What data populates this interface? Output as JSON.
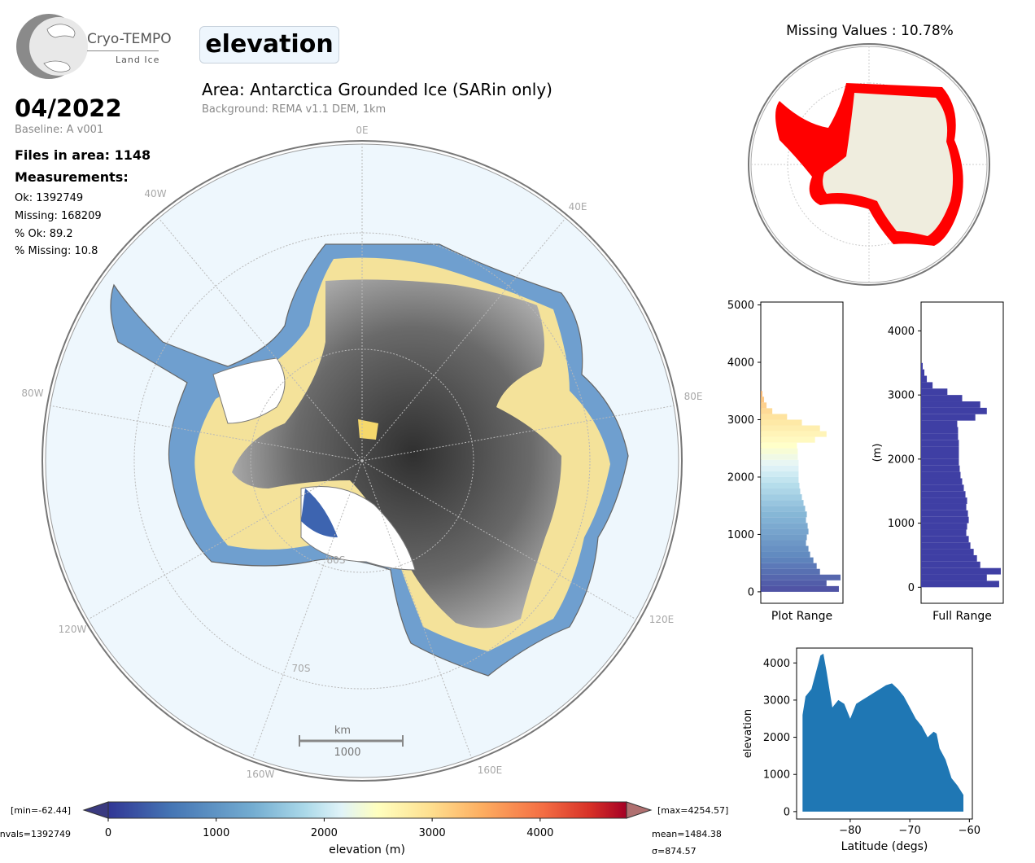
{
  "header": {
    "logo_name": "Cryo-TEMPO",
    "logo_sub": "Land Ice",
    "variable": "elevation",
    "area_title": "Area: Antarctica Grounded Ice (SARin only)",
    "background": "Background: REMA v1.1 DEM, 1km"
  },
  "info": {
    "date": "04/2022",
    "baseline": "Baseline: A v001",
    "files": "Files in area: 1148",
    "measurements_label": "Measurements:",
    "ok": "Ok: 1392749",
    "missing": "Missing: 168209",
    "pct_ok": "% Ok: 89.2",
    "pct_missing": "% Missing: 10.8"
  },
  "map": {
    "lon_labels": [
      "0E",
      "40E",
      "80E",
      "120E",
      "160E",
      "160W",
      "120W",
      "80W",
      "40W"
    ],
    "lat_labels": [
      "80S",
      "70S"
    ],
    "scale_unit": "km",
    "scale_value": "1000"
  },
  "missing_map": {
    "title": "Missing Values : 10.78%"
  },
  "colorbar": {
    "min_text": "[min=-62.44]",
    "max_text": "[max=4254.57]",
    "nvals_text": "nvals=1392749",
    "mean_text": "mean=1484.38",
    "sigma_text": "σ=874.57",
    "label": "elevation (m)",
    "ticks": [
      0,
      1000,
      2000,
      3000,
      4000
    ],
    "range": [
      0,
      4800
    ]
  },
  "colors": {
    "ocean": "#eef7fd",
    "land": "#efedde",
    "missing": "#ff0000",
    "hist_full": "#3f3fa4",
    "scatter": "#1f77b4"
  },
  "chart_data": [
    {
      "type": "bar",
      "orientation": "horizontal",
      "title": "",
      "xlabel": "Plot Range",
      "ylabel": "",
      "ylim": [
        -200,
        5050
      ],
      "yticks": [
        0,
        1000,
        2000,
        3000,
        4000,
        5000
      ],
      "bins": [
        0,
        100,
        200,
        300,
        400,
        500,
        600,
        700,
        800,
        900,
        1000,
        1100,
        1200,
        1300,
        1400,
        1500,
        1600,
        1700,
        1800,
        1900,
        2000,
        2100,
        2200,
        2300,
        2400,
        2500,
        2600,
        2700,
        2800,
        2900,
        3000,
        3100,
        3200,
        3300,
        3400
      ],
      "counts": [
        0.95,
        0.8,
        0.97,
        0.72,
        0.68,
        0.64,
        0.6,
        0.58,
        0.55,
        0.56,
        0.58,
        0.57,
        0.55,
        0.56,
        0.54,
        0.52,
        0.5,
        0.48,
        0.47,
        0.46,
        0.46,
        0.46,
        0.46,
        0.45,
        0.45,
        0.44,
        0.66,
        0.8,
        0.72,
        0.5,
        0.32,
        0.14,
        0.07,
        0.04,
        0.02
      ]
    },
    {
      "type": "bar",
      "orientation": "horizontal",
      "title": "",
      "xlabel": "Full Range",
      "ylabel": "(m)",
      "ylim": [
        -250,
        4450
      ],
      "yticks": [
        0,
        1000,
        2000,
        3000,
        4000
      ],
      "bins": [
        0,
        100,
        200,
        300,
        400,
        500,
        600,
        700,
        800,
        900,
        1000,
        1100,
        1200,
        1300,
        1400,
        1500,
        1600,
        1700,
        1800,
        1900,
        2000,
        2100,
        2200,
        2300,
        2400,
        2500,
        2600,
        2700,
        2800,
        2900,
        3000,
        3100,
        3200,
        3300,
        3400
      ],
      "counts": [
        0.95,
        0.8,
        0.97,
        0.72,
        0.68,
        0.64,
        0.6,
        0.58,
        0.55,
        0.56,
        0.58,
        0.57,
        0.55,
        0.56,
        0.54,
        0.52,
        0.5,
        0.48,
        0.47,
        0.46,
        0.46,
        0.46,
        0.46,
        0.45,
        0.45,
        0.44,
        0.66,
        0.8,
        0.72,
        0.5,
        0.32,
        0.14,
        0.07,
        0.04,
        0.02
      ]
    },
    {
      "type": "scatter",
      "title": "",
      "xlabel": "Latitude (degs)",
      "ylabel": "elevation",
      "xlim": [
        -89,
        -59.5
      ],
      "ylim": [
        -200,
        4400
      ],
      "xticks": [
        -80,
        -70,
        -60
      ],
      "yticks": [
        0,
        1000,
        2000,
        3000,
        4000
      ],
      "envelope_x": [
        -88,
        -87.5,
        -86.5,
        -85.5,
        -85,
        -84.5,
        -84,
        -83,
        -82,
        -81,
        -80,
        -79,
        -78,
        -77,
        -76,
        -75,
        -74,
        -73,
        -72,
        -71,
        -70,
        -69,
        -68,
        -67,
        -66,
        -65.5,
        -65,
        -64,
        -63,
        -62,
        -61
      ],
      "envelope_y": [
        2600,
        3100,
        3300,
        3900,
        4200,
        4250,
        3800,
        2800,
        3000,
        2900,
        2500,
        2900,
        3000,
        3100,
        3200,
        3300,
        3400,
        3450,
        3300,
        3100,
        2800,
        2500,
        2300,
        2000,
        2150,
        2100,
        1700,
        1400,
        900,
        700,
        450
      ]
    }
  ]
}
